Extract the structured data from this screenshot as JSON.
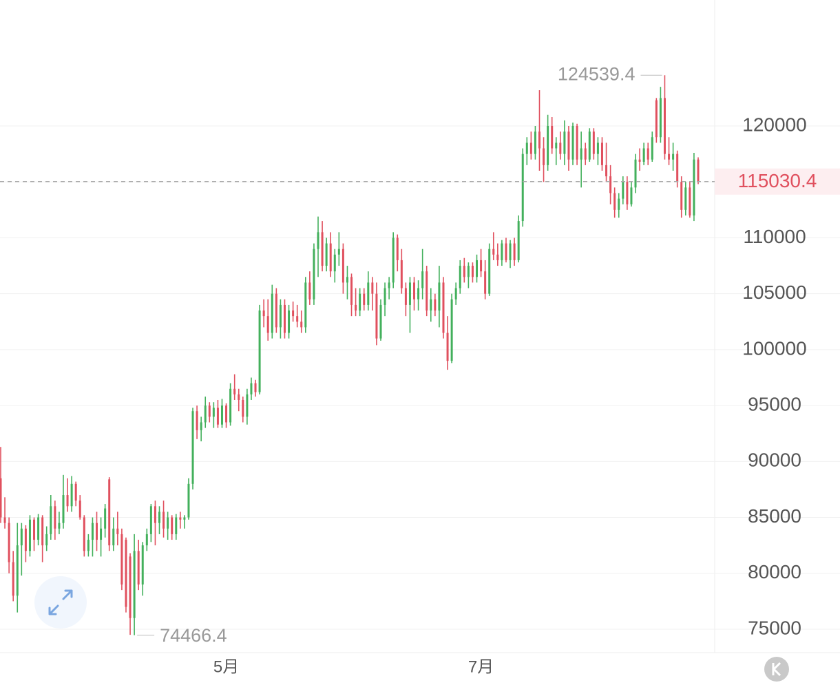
{
  "chart_data": {
    "type": "candlestick",
    "up_color": "#43b05c",
    "down_color": "#e0505e",
    "ylim": [
      72906,
      131266
    ],
    "yticks": [
      75000,
      80000,
      85000,
      90000,
      95000,
      100000,
      105000,
      110000,
      115000,
      120000
    ],
    "xlim": [
      0,
      167
    ],
    "xticks": [
      {
        "value": 54,
        "label": "5月"
      },
      {
        "value": 115,
        "label": "7月"
      }
    ],
    "grid": true,
    "ohlc": [
      [
        88500,
        91300,
        84500,
        85000
      ],
      [
        85000,
        86800,
        84000,
        84500
      ],
      [
        84500,
        85000,
        80000,
        81000
      ],
      [
        81000,
        82000,
        77500,
        78000
      ],
      [
        78000,
        84500,
        76500,
        82500
      ],
      [
        82500,
        84500,
        79800,
        84000
      ],
      [
        84000,
        84300,
        81000,
        82000
      ],
      [
        82000,
        85200,
        81500,
        84800
      ],
      [
        84800,
        85000,
        82000,
        83000
      ],
      [
        83000,
        85300,
        82500,
        85000
      ],
      [
        85000,
        85200,
        81000,
        82500
      ],
      [
        82500,
        84200,
        82000,
        83500
      ],
      [
        83500,
        87000,
        83000,
        86000
      ],
      [
        86000,
        86500,
        83000,
        84000
      ],
      [
        84000,
        85500,
        83500,
        84500
      ],
      [
        84500,
        88800,
        84000,
        87000
      ],
      [
        87000,
        88500,
        85500,
        86000
      ],
      [
        86000,
        88700,
        85500,
        88000
      ],
      [
        88000,
        88200,
        86000,
        86500
      ],
      [
        86500,
        87000,
        84800,
        85000
      ],
      [
        85000,
        85200,
        81500,
        82000
      ],
      [
        82000,
        83500,
        81500,
        83000
      ],
      [
        83000,
        85000,
        81500,
        84500
      ],
      [
        84500,
        85500,
        82000,
        83000
      ],
      [
        83000,
        85000,
        81500,
        84000
      ],
      [
        84000,
        86200,
        83200,
        85800
      ],
      [
        88400,
        88600,
        82000,
        82500
      ],
      [
        82500,
        85000,
        82000,
        84000
      ],
      [
        84000,
        85500,
        82500,
        83500
      ],
      [
        83500,
        84000,
        78500,
        79000
      ],
      [
        83000,
        83200,
        76500,
        77000
      ],
      [
        81500,
        81800,
        74500,
        76000
      ],
      [
        76000,
        83500,
        74466.4,
        82000
      ],
      [
        82000,
        83000,
        78500,
        79000
      ],
      [
        79000,
        82800,
        78000,
        82500
      ],
      [
        82500,
        84000,
        82000,
        83500
      ],
      [
        83500,
        86200,
        82800,
        86000
      ],
      [
        86000,
        86500,
        82500,
        84500
      ],
      [
        84500,
        86000,
        83500,
        85500
      ],
      [
        85500,
        86500,
        83200,
        84000
      ],
      [
        84000,
        85500,
        83000,
        85000
      ],
      [
        85000,
        85200,
        83000,
        83500
      ],
      [
        83500,
        85300,
        83000,
        85000
      ],
      [
        85000,
        85500,
        84000,
        84800
      ],
      [
        84800,
        85200,
        84000,
        85000
      ],
      [
        85000,
        88500,
        84800,
        88000
      ],
      [
        88000,
        94800,
        87500,
        94500
      ],
      [
        94500,
        95000,
        92000,
        92800
      ],
      [
        92800,
        94000,
        91800,
        93500
      ],
      [
        93500,
        95800,
        93000,
        95000
      ],
      [
        95000,
        95300,
        93500,
        94000
      ],
      [
        94000,
        95300,
        93000,
        94800
      ],
      [
        94800,
        95500,
        93000,
        93300
      ],
      [
        93300,
        95600,
        93000,
        95000
      ],
      [
        95000,
        95200,
        93000,
        93500
      ],
      [
        93500,
        97000,
        93200,
        96500
      ],
      [
        96500,
        97800,
        95500,
        96000
      ],
      [
        96000,
        96500,
        94500,
        95500
      ],
      [
        95500,
        95800,
        93500,
        94000
      ],
      [
        94000,
        96500,
        93300,
        96000
      ],
      [
        96000,
        97500,
        95500,
        97000
      ],
      [
        97000,
        97300,
        95800,
        96200
      ],
      [
        96200,
        104000,
        96000,
        103500
      ],
      [
        103500,
        104500,
        102000,
        103000
      ],
      [
        103000,
        104500,
        100800,
        101500
      ],
      [
        101500,
        105800,
        101000,
        105000
      ],
      [
        105000,
        105500,
        101500,
        102000
      ],
      [
        102000,
        104500,
        101000,
        104000
      ],
      [
        104000,
        104500,
        101000,
        101500
      ],
      [
        101500,
        104000,
        101000,
        103500
      ],
      [
        103500,
        104300,
        102500,
        103000
      ],
      [
        103000,
        104000,
        102000,
        102500
      ],
      [
        102500,
        103500,
        101500,
        102000
      ],
      [
        102000,
        106500,
        101500,
        106000
      ],
      [
        106000,
        107000,
        104000,
        104500
      ],
      [
        104500,
        109500,
        104000,
        109000
      ],
      [
        109000,
        111900,
        106500,
        110500
      ],
      [
        110500,
        111500,
        107000,
        107500
      ],
      [
        107500,
        110000,
        107000,
        109500
      ],
      [
        109500,
        110500,
        106500,
        107000
      ],
      [
        107000,
        109000,
        106000,
        108500
      ],
      [
        108500,
        110500,
        107500,
        109000
      ],
      [
        109000,
        109500,
        105000,
        106000
      ],
      [
        106000,
        107500,
        104500,
        106500
      ],
      [
        106500,
        106800,
        103000,
        104000
      ],
      [
        104000,
        105500,
        103000,
        103500
      ],
      [
        103500,
        105500,
        103000,
        105000
      ],
      [
        105000,
        105500,
        103500,
        104000
      ],
      [
        104000,
        107000,
        103500,
        106000
      ],
      [
        106000,
        106500,
        103500,
        105000
      ],
      [
        105000,
        106000,
        100400,
        101000
      ],
      [
        101000,
        104500,
        100800,
        104000
      ],
      [
        104000,
        106000,
        103000,
        105500
      ],
      [
        105500,
        106500,
        104500,
        106000
      ],
      [
        106000,
        110500,
        105500,
        110000
      ],
      [
        110000,
        110300,
        107000,
        108000
      ],
      [
        108000,
        109000,
        105000,
        105500
      ],
      [
        105500,
        106000,
        103000,
        104000
      ],
      [
        104000,
        106500,
        101500,
        106000
      ],
      [
        106000,
        106500,
        103500,
        104500
      ],
      [
        104500,
        106200,
        103500,
        105500
      ],
      [
        105500,
        109000,
        104500,
        107000
      ],
      [
        107000,
        107500,
        103000,
        103500
      ],
      [
        103500,
        105500,
        102500,
        104500
      ],
      [
        104500,
        105000,
        103000,
        103500
      ],
      [
        103500,
        107500,
        102000,
        106000
      ],
      [
        106000,
        106500,
        101000,
        101500
      ],
      [
        101500,
        103000,
        98200,
        99000
      ],
      [
        99000,
        105000,
        98800,
        104500
      ],
      [
        104500,
        106000,
        104000,
        105500
      ],
      [
        105500,
        108000,
        105000,
        107500
      ],
      [
        107500,
        108200,
        106000,
        106500
      ],
      [
        106500,
        107800,
        105500,
        107500
      ],
      [
        107500,
        107800,
        106000,
        106500
      ],
      [
        106500,
        108500,
        106000,
        108000
      ],
      [
        108000,
        109000,
        106500,
        107000
      ],
      [
        107000,
        108000,
        104500,
        105000
      ],
      [
        105000,
        109500,
        104800,
        109000
      ],
      [
        109000,
        110500,
        108000,
        108500
      ],
      [
        108500,
        109500,
        107500,
        108000
      ],
      [
        108000,
        109800,
        107500,
        109500
      ],
      [
        109500,
        110000,
        107800,
        108000
      ],
      [
        108000,
        109800,
        107300,
        109500
      ],
      [
        109500,
        110000,
        107500,
        108000
      ],
      [
        108000,
        112000,
        107800,
        111500
      ],
      [
        111500,
        118000,
        111000,
        117500
      ],
      [
        117500,
        119000,
        116500,
        118500
      ],
      [
        118500,
        119500,
        117000,
        117500
      ],
      [
        117500,
        120000,
        117000,
        119500
      ],
      [
        119500,
        123200,
        116000,
        118000
      ],
      [
        118000,
        119000,
        115000,
        116500
      ],
      [
        116500,
        121000,
        116000,
        120000
      ],
      [
        120000,
        120800,
        117500,
        118000
      ],
      [
        118000,
        119000,
        116500,
        118500
      ],
      [
        118500,
        119500,
        117000,
        117500
      ],
      [
        117500,
        120500,
        116500,
        119500
      ],
      [
        119500,
        120000,
        116000,
        117000
      ],
      [
        117000,
        120300,
        116500,
        120000
      ],
      [
        120000,
        120200,
        116500,
        117000
      ],
      [
        117000,
        119500,
        114500,
        118000
      ],
      [
        118000,
        118500,
        116500,
        117000
      ],
      [
        117000,
        119800,
        116800,
        119500
      ],
      [
        119500,
        119800,
        117000,
        117500
      ],
      [
        117500,
        119000,
        116500,
        118500
      ],
      [
        118500,
        119000,
        116000,
        116500
      ],
      [
        116500,
        118500,
        115000,
        115500
      ],
      [
        115500,
        116500,
        113000,
        114000
      ],
      [
        114000,
        114500,
        111800,
        112500
      ],
      [
        112500,
        114000,
        111800,
        113500
      ],
      [
        113500,
        115500,
        113000,
        115000
      ],
      [
        115000,
        115500,
        112500,
        113000
      ],
      [
        113000,
        115000,
        112800,
        114500
      ],
      [
        114500,
        117500,
        114000,
        117000
      ],
      [
        117000,
        118000,
        116000,
        116800
      ],
      [
        116800,
        118500,
        116500,
        118000
      ],
      [
        118000,
        118500,
        116500,
        117000
      ],
      [
        117000,
        119500,
        116800,
        119000
      ],
      [
        122300,
        122500,
        118500,
        119000
      ],
      [
        119000,
        123500,
        118500,
        122500
      ],
      [
        122500,
        124539.4,
        117000,
        117500
      ],
      [
        117500,
        119000,
        116500,
        117000
      ],
      [
        117000,
        118500,
        116000,
        117500
      ],
      [
        117500,
        117800,
        114500,
        115000
      ],
      [
        115000,
        115500,
        111800,
        112500
      ],
      [
        112500,
        115000,
        112000,
        114500
      ],
      [
        114500,
        115000,
        111800,
        112000
      ],
      [
        112000,
        117600,
        111500,
        117000
      ],
      [
        117000,
        117200,
        114800,
        115030.4
      ]
    ]
  }
}
